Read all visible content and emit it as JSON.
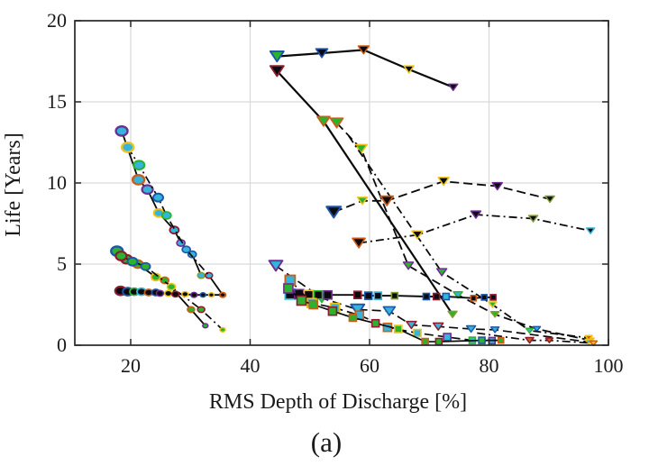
{
  "chart_data": {
    "type": "scatter",
    "title": "",
    "xlabel": "RMS Depth of Discharge [%]",
    "ylabel": "Life [Years]",
    "caption": "(a)",
    "xlim": [
      10.64,
      100
    ],
    "ylim": [
      0,
      20
    ],
    "xticks": [
      20,
      40,
      60,
      80,
      100
    ],
    "yticks": [
      0,
      5,
      10,
      15,
      20
    ],
    "grid": true,
    "legend": "none",
    "colors": {
      "grid": "#d9d9d9",
      "frame": "#262626",
      "line": "#0a0a0a",
      "cyan": "#35b5dc",
      "green": "#2db22d",
      "olive": "#7e9e2d",
      "blue": "#1d56a8",
      "darkred": "#8e1b2f",
      "orange": "#ce5c15",
      "yellow": "#efc319",
      "purple": "#6e2d91",
      "black": "#0a0a10"
    },
    "point_format": "[x, y, marker_size_px, fill_color_key, edge_color_key]",
    "series": [
      {
        "name": "circles-descending-solid",
        "marker": "circle",
        "line": "solid",
        "lw": 1.8,
        "points": [
          [
            18.5,
            13.2,
            13,
            "cyan",
            "purple"
          ],
          [
            21.3,
            10.2,
            13,
            "cyan",
            "orange"
          ],
          [
            22.8,
            9.6,
            12,
            "cyan",
            "purple"
          ],
          [
            24.7,
            8.15,
            11,
            "cyan",
            "yellow"
          ],
          [
            27.3,
            7.1,
            10,
            "cyan",
            "darkred"
          ],
          [
            28.4,
            6.3,
            9,
            "cyan",
            "purple"
          ],
          [
            30.3,
            5.6,
            9,
            "cyan",
            "blue"
          ],
          [
            31.8,
            4.3,
            8,
            "cyan",
            "olive"
          ],
          [
            33.1,
            4.3,
            8,
            "cyan",
            "darkred"
          ],
          [
            35.4,
            3.1,
            7,
            "black",
            "orange"
          ]
        ]
      },
      {
        "name": "circles-descending-dashdot",
        "marker": "circle",
        "line": "dashdot",
        "lw": 1.7,
        "points": [
          [
            19.5,
            12.2,
            13,
            "cyan",
            "yellow"
          ],
          [
            21.4,
            11.1,
            12,
            "cyan",
            "green"
          ],
          [
            24.6,
            9.1,
            11,
            "cyan",
            "blue"
          ],
          [
            26.0,
            8.0,
            10,
            "cyan",
            "green"
          ],
          [
            29.3,
            5.9,
            9,
            "cyan",
            "blue"
          ],
          [
            33.1,
            4.3,
            0,
            "cyan",
            "darkred"
          ]
        ]
      },
      {
        "name": "circles-green-solid",
        "marker": "circle",
        "line": "solid",
        "lw": 1.8,
        "points": [
          [
            17.7,
            5.8,
            13,
            "green",
            "blue"
          ],
          [
            19.3,
            5.3,
            12,
            "green",
            "darkred"
          ],
          [
            21.2,
            5.0,
            11,
            "green",
            "orange"
          ],
          [
            24.2,
            4.2,
            10,
            "green",
            "yellow"
          ],
          [
            25.7,
            4.0,
            9,
            "green",
            "orange"
          ],
          [
            30.1,
            2.2,
            8,
            "green",
            "orange"
          ],
          [
            32.5,
            1.2,
            6,
            "green",
            "purple"
          ]
        ]
      },
      {
        "name": "circles-green-dashdot",
        "marker": "circle",
        "line": "dashdot",
        "lw": 1.7,
        "points": [
          [
            18.4,
            5.5,
            12,
            "green",
            "darkred"
          ],
          [
            20.3,
            5.15,
            11,
            "green",
            "blue"
          ],
          [
            22.5,
            4.85,
            10,
            "green",
            "blue"
          ],
          [
            26.8,
            3.6,
            9,
            "green",
            "yellow"
          ],
          [
            31.8,
            2.2,
            8,
            "green",
            "darkred"
          ],
          [
            35.4,
            0.95,
            6,
            "green",
            "yellow"
          ]
        ]
      },
      {
        "name": "circles-flat-solid",
        "marker": "circle",
        "line": "solid",
        "lw": 1.8,
        "points": [
          [
            18.3,
            3.35,
            12,
            "black",
            "darkred"
          ],
          [
            19.5,
            3.3,
            11,
            "black",
            "blue"
          ],
          [
            20.6,
            3.3,
            10,
            "black",
            "green"
          ],
          [
            21.8,
            3.3,
            10,
            "black",
            "cyan"
          ],
          [
            23.0,
            3.25,
            9,
            "black",
            "orange"
          ],
          [
            24.2,
            3.25,
            9,
            "black",
            "blue"
          ],
          [
            24.9,
            3.2,
            8,
            "black",
            "purple"
          ],
          [
            26.3,
            3.2,
            8,
            "black",
            "yellow"
          ],
          [
            27.5,
            3.15,
            8,
            "black",
            "darkred"
          ],
          [
            29.1,
            3.15,
            7,
            "black",
            "yellow"
          ],
          [
            30.6,
            3.1,
            7,
            "black",
            "purple"
          ],
          [
            32.1,
            3.1,
            6,
            "black",
            "blue"
          ],
          [
            33.5,
            3.1,
            6,
            "black",
            "yellow"
          ],
          [
            35.4,
            3.1,
            6,
            "black",
            "orange"
          ]
        ]
      },
      {
        "name": "tri-top-solid",
        "marker": "triangle-down",
        "line": "solid",
        "lw": 2.2,
        "points": [
          [
            44.5,
            17.8,
            13,
            "green",
            "blue"
          ],
          [
            52.0,
            18.0,
            11,
            "black",
            "blue"
          ],
          [
            59.0,
            18.2,
            10,
            "black",
            "orange"
          ],
          [
            66.6,
            17.0,
            9,
            "black",
            "yellow"
          ],
          [
            74.0,
            15.9,
            8,
            "black",
            "purple"
          ]
        ]
      },
      {
        "name": "tri-steep-solid",
        "marker": "triangle-down",
        "line": "solid",
        "lw": 2.2,
        "points": [
          [
            44.5,
            16.9,
            13,
            "black",
            "darkred"
          ],
          [
            52.3,
            13.8,
            12,
            "green",
            "orange"
          ],
          [
            73.9,
            1.9,
            8,
            "green",
            "olive"
          ]
        ]
      },
      {
        "name": "tri-steep-dashed",
        "marker": "triangle-down",
        "line": "dashed",
        "lw": 1.8,
        "points": [
          [
            54.5,
            13.7,
            12,
            "green",
            "orange"
          ],
          [
            58.6,
            12.1,
            11,
            "green",
            "yellow"
          ],
          [
            66.5,
            4.9,
            9,
            "green",
            "purple"
          ],
          [
            74.8,
            3.1,
            8,
            "cyan",
            "green"
          ],
          [
            81.0,
            1.9,
            7,
            "green",
            "olive"
          ],
          [
            88.0,
            1.0,
            6,
            "cyan",
            "blue"
          ],
          [
            97.0,
            0.3,
            6,
            "cyan",
            "yellow"
          ]
        ]
      },
      {
        "name": "tri-steep-dashdot",
        "marker": "triangle-down",
        "line": "dashdot",
        "lw": 1.8,
        "points": [
          [
            56.5,
            12.9,
            0,
            "green",
            "yellow"
          ],
          [
            72.1,
            4.5,
            9,
            "green",
            "purple"
          ],
          [
            80.6,
            2.5,
            7,
            "green",
            "yellow"
          ],
          [
            86.8,
            0.9,
            6,
            "cyan",
            "green"
          ],
          [
            96.7,
            0.45,
            6,
            "orange",
            "yellow"
          ]
        ]
      },
      {
        "name": "tri-arc-dashed",
        "marker": "triangle-down",
        "line": "dashed",
        "lw": 1.8,
        "points": [
          [
            54.0,
            8.2,
            14,
            "black",
            "blue"
          ],
          [
            58.8,
            8.9,
            9,
            "green",
            "yellow"
          ],
          [
            62.9,
            8.9,
            12,
            "black",
            "orange"
          ],
          [
            72.4,
            10.1,
            10,
            "black",
            "yellow"
          ],
          [
            81.4,
            9.8,
            9,
            "black",
            "purple"
          ],
          [
            90.2,
            9.0,
            8,
            "black",
            "olive"
          ]
        ]
      },
      {
        "name": "tri-arc-dashdot",
        "marker": "triangle-down",
        "line": "dashdot",
        "lw": 1.8,
        "points": [
          [
            58.2,
            6.3,
            12,
            "black",
            "orange"
          ],
          [
            68.0,
            6.8,
            10,
            "black",
            "yellow"
          ],
          [
            77.8,
            8.05,
            9,
            "black",
            "purple"
          ],
          [
            87.4,
            7.8,
            8,
            "black",
            "olive"
          ],
          [
            97.0,
            7.05,
            7,
            "black",
            "cyan"
          ]
        ]
      },
      {
        "name": "tri-low-dashed",
        "marker": "triangle-down",
        "line": "dashed",
        "lw": 1.7,
        "points": [
          [
            44.3,
            4.9,
            13,
            "cyan",
            "purple"
          ],
          [
            52.0,
            2.9,
            11,
            "cyan",
            "green"
          ],
          [
            58.0,
            2.2,
            13,
            "cyan",
            "blue"
          ],
          [
            63.3,
            2.1,
            11,
            "cyan",
            "blue"
          ],
          [
            67.0,
            1.25,
            9,
            "cyan",
            "darkred"
          ],
          [
            71.5,
            1.15,
            9,
            "cyan",
            "darkred"
          ],
          [
            77.0,
            1.0,
            8,
            "cyan",
            "blue"
          ],
          [
            81.0,
            0.95,
            7,
            "cyan",
            "blue"
          ],
          [
            96.7,
            0.2,
            6,
            "cyan",
            "yellow"
          ]
        ]
      },
      {
        "name": "tri-bottom-dashdot",
        "marker": "triangle-down",
        "line": "dashdot",
        "lw": 1.7,
        "points": [
          [
            78.0,
            0.75,
            0,
            "orange",
            "darkred"
          ],
          [
            86.8,
            0.3,
            7,
            "orange",
            "darkred"
          ],
          [
            90.1,
            0.3,
            6,
            "orange",
            "darkred"
          ],
          [
            97.5,
            0.12,
            6,
            "yellow",
            "orange"
          ]
        ]
      },
      {
        "name": "sq-flat-solid",
        "marker": "square",
        "line": "solid",
        "lw": 1.9,
        "points": [
          [
            46.7,
            3.15,
            11,
            "black",
            "cyan"
          ],
          [
            48.2,
            3.15,
            10,
            "black",
            "purple"
          ],
          [
            49.8,
            3.1,
            10,
            "black",
            "yellow"
          ],
          [
            51.4,
            3.1,
            9,
            "black",
            "green"
          ],
          [
            53.0,
            3.1,
            9,
            "black",
            "purple"
          ],
          [
            58.0,
            3.1,
            8,
            "black",
            "darkred"
          ],
          [
            59.8,
            3.05,
            8,
            "black",
            "blue"
          ],
          [
            61.4,
            3.05,
            8,
            "black",
            "cyan"
          ],
          [
            64.2,
            3.05,
            7,
            "black",
            "olive"
          ],
          [
            69.5,
            3.0,
            7,
            "black",
            "blue"
          ],
          [
            71.2,
            3.0,
            7,
            "black",
            "darkred"
          ],
          [
            72.8,
            3.0,
            7,
            "cyan",
            "blue"
          ],
          [
            77.4,
            2.9,
            6,
            "black",
            "orange"
          ],
          [
            79.2,
            2.95,
            6,
            "black",
            "blue"
          ],
          [
            80.7,
            2.95,
            6,
            "black",
            "darkred"
          ]
        ]
      },
      {
        "name": "sq-desc-dashed",
        "marker": "square",
        "line": "dashed",
        "lw": 1.7,
        "points": [
          [
            46.7,
            4.0,
            11,
            "cyan",
            "orange"
          ],
          [
            50.3,
            2.6,
            10,
            "cyan",
            "yellow"
          ],
          [
            54.2,
            2.3,
            10,
            "cyan",
            "yellow"
          ],
          [
            58.3,
            1.85,
            9,
            "cyan",
            "orange"
          ],
          [
            63.0,
            1.1,
            9,
            "cyan",
            "orange"
          ],
          [
            68.0,
            0.75,
            8,
            "cyan",
            "yellow"
          ],
          [
            73.0,
            0.5,
            8,
            "cyan",
            "purple"
          ],
          [
            77.2,
            0.3,
            7,
            "cyan",
            "green"
          ],
          [
            80.5,
            0.28,
            7,
            "cyan",
            "purple"
          ]
        ]
      },
      {
        "name": "sq-desc-solid",
        "marker": "square",
        "line": "solid",
        "lw": 1.7,
        "points": [
          [
            46.4,
            3.5,
            10,
            "green",
            "purple"
          ],
          [
            48.6,
            2.75,
            10,
            "green",
            "darkred"
          ],
          [
            50.6,
            2.5,
            9,
            "green",
            "orange"
          ],
          [
            53.8,
            2.1,
            9,
            "green",
            "darkred"
          ],
          [
            57.2,
            1.7,
            8,
            "green",
            "orange"
          ],
          [
            61.0,
            1.35,
            8,
            "green",
            "darkred"
          ],
          [
            64.8,
            1.0,
            8,
            "green",
            "yellow"
          ],
          [
            69.3,
            0.22,
            7,
            "green",
            "orange"
          ],
          [
            71.6,
            0.22,
            7,
            "green",
            "darkred"
          ],
          [
            78.8,
            0.3,
            7,
            "green",
            "blue"
          ],
          [
            82.0,
            0.3,
            6,
            "green",
            "orange"
          ]
        ]
      }
    ]
  }
}
